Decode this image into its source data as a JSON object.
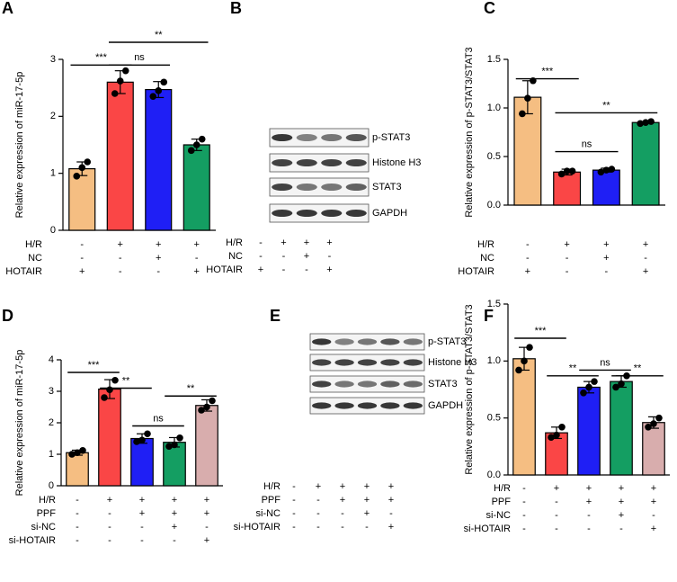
{
  "chart_data": [
    {
      "type": "bar",
      "panel": "A",
      "ylabel": "Relative expression of miR-17-5p",
      "categories": [
        null,
        null,
        null,
        null
      ],
      "values": [
        1.08,
        2.6,
        2.47,
        1.5
      ],
      "errors": [
        0.12,
        0.2,
        0.14,
        0.1
      ],
      "points": [
        [
          0.95,
          1.1,
          1.2
        ],
        [
          2.4,
          2.62,
          2.8
        ],
        [
          2.35,
          2.45,
          2.6
        ],
        [
          1.4,
          1.5,
          1.6
        ]
      ],
      "colors": [
        "#f5be82",
        "#fa4646",
        "#1f1ff5",
        "#149e62"
      ],
      "ylim": [
        0,
        3
      ],
      "yticks": [
        0,
        1,
        2,
        3
      ],
      "annotations": [
        {
          "text": "***",
          "from": 0,
          "to": 1,
          "y": 2.9
        },
        {
          "text": "ns",
          "from": 1,
          "to": 2,
          "y": 2.9
        },
        {
          "text": "**",
          "from": 1,
          "to": 3,
          "y": 3.3
        }
      ],
      "conditions": [
        {
          "label": "H/R",
          "marks": [
            "-",
            "+",
            "+",
            "+"
          ]
        },
        {
          "label": "NC",
          "marks": [
            "-",
            "-",
            "+",
            "-"
          ]
        },
        {
          "label": "HOTAIR",
          "marks": [
            "+",
            "-",
            "-",
            "+"
          ]
        }
      ]
    },
    {
      "type": "bar",
      "panel": "C",
      "ylabel": "Relative expression of p-STAT3/STAT3",
      "categories": [
        null,
        null,
        null,
        null
      ],
      "values": [
        1.11,
        0.34,
        0.36,
        0.85
      ],
      "errors": [
        0.17,
        0.03,
        0.02,
        0.01
      ],
      "points": [
        [
          0.94,
          1.1,
          1.28
        ],
        [
          0.32,
          0.35,
          0.35
        ],
        [
          0.34,
          0.36,
          0.37
        ],
        [
          0.84,
          0.85,
          0.86
        ]
      ],
      "colors": [
        "#f5be82",
        "#fa4646",
        "#1f1ff5",
        "#149e62"
      ],
      "ylim": [
        0,
        1.5
      ],
      "yticks": [
        {
          "value": 0,
          "label": "0.0"
        },
        0.5,
        {
          "value": 1,
          "label": "1.0"
        },
        1.5
      ],
      "annotations": [
        {
          "text": "***",
          "from": 0,
          "to": 1,
          "y": 1.3
        },
        {
          "text": "ns",
          "from": 1,
          "to": 2,
          "y": 0.55
        },
        {
          "text": "**",
          "from": 1,
          "to": 3,
          "y": 0.95
        }
      ],
      "conditions": [
        {
          "label": "H/R",
          "marks": [
            "-",
            "+",
            "+",
            "+"
          ]
        },
        {
          "label": "NC",
          "marks": [
            "-",
            "-",
            "+",
            "-"
          ]
        },
        {
          "label": "HOTAIR",
          "marks": [
            "+",
            "-",
            "-",
            "+"
          ]
        }
      ]
    },
    {
      "type": "bar",
      "panel": "D",
      "ylabel": "Relative expression of miR-17-5p",
      "categories": [
        null,
        null,
        null,
        null,
        null
      ],
      "values": [
        1.05,
        3.07,
        1.5,
        1.38,
        2.55
      ],
      "errors": [
        0.08,
        0.3,
        0.15,
        0.15,
        0.18
      ],
      "points": [
        [
          1.0,
          1.05,
          1.12
        ],
        [
          2.8,
          3.05,
          3.35
        ],
        [
          1.4,
          1.45,
          1.65
        ],
        [
          1.25,
          1.3,
          1.52
        ],
        [
          2.4,
          2.5,
          2.7
        ]
      ],
      "colors": [
        "#f5be82",
        "#fa4646",
        "#1f1ff5",
        "#149e62",
        "#d8adad"
      ],
      "ylim": [
        0,
        4
      ],
      "yticks": [
        0,
        1,
        2,
        3,
        4
      ],
      "annotations": [
        {
          "text": "***",
          "from": 0,
          "to": 1,
          "y": 3.6
        },
        {
          "text": "**",
          "from": 1,
          "to": 2,
          "y": 3.1
        },
        {
          "text": "ns",
          "from": 2,
          "to": 3,
          "y": 1.9
        },
        {
          "text": "**",
          "from": 3,
          "to": 4,
          "y": 2.85
        }
      ],
      "conditions": [
        {
          "label": "H/R",
          "marks": [
            "-",
            "+",
            "+",
            "+",
            "+"
          ]
        },
        {
          "label": "PPF",
          "marks": [
            "-",
            "-",
            "+",
            "+",
            "+"
          ]
        },
        {
          "label": "si-NC",
          "marks": [
            "-",
            "-",
            "-",
            "+",
            "-"
          ]
        },
        {
          "label": "si-HOTAIR",
          "marks": [
            "-",
            "-",
            "-",
            "-",
            "+"
          ]
        }
      ]
    },
    {
      "type": "bar",
      "panel": "F",
      "ylabel": "Relative expression of p-STAT3/STAT3",
      "categories": [
        null,
        null,
        null,
        null,
        null
      ],
      "values": [
        1.02,
        0.37,
        0.77,
        0.82,
        0.46
      ],
      "errors": [
        0.1,
        0.05,
        0.05,
        0.05,
        0.05
      ],
      "points": [
        [
          0.92,
          1.0,
          1.12
        ],
        [
          0.33,
          0.35,
          0.42
        ],
        [
          0.72,
          0.77,
          0.82
        ],
        [
          0.77,
          0.8,
          0.87
        ],
        [
          0.42,
          0.45,
          0.5
        ]
      ],
      "colors": [
        "#f5be82",
        "#fa4646",
        "#1f1ff5",
        "#149e62",
        "#d8adad"
      ],
      "ylim": [
        0,
        1.5
      ],
      "yticks": [
        {
          "value": 0,
          "label": "0.0"
        },
        0.5,
        {
          "value": 1,
          "label": "1.0"
        },
        1.5
      ],
      "annotations": [
        {
          "text": "***",
          "from": 0,
          "to": 1,
          "y": 1.2
        },
        {
          "text": "**",
          "from": 1,
          "to": 2,
          "y": 0.87
        },
        {
          "text": "ns",
          "from": 2,
          "to": 3,
          "y": 0.92
        },
        {
          "text": "**",
          "from": 3,
          "to": 4,
          "y": 0.87
        }
      ],
      "conditions": [
        {
          "label": "H/R",
          "marks": [
            "-",
            "+",
            "+",
            "+",
            "+"
          ]
        },
        {
          "label": "PPF",
          "marks": [
            "-",
            "-",
            "+",
            "+",
            "+"
          ]
        },
        {
          "label": "si-NC",
          "marks": [
            "-",
            "-",
            "-",
            "+",
            "-"
          ]
        },
        {
          "label": "si-HOTAIR",
          "marks": [
            "-",
            "-",
            "-",
            "-",
            "+"
          ]
        }
      ]
    }
  ],
  "blots": [
    {
      "panel": "B",
      "bands": [
        "p-STAT3",
        "Histone H3",
        "STAT3",
        "GAPDH"
      ],
      "conditions": [
        {
          "label": "H/R",
          "marks": [
            "-",
            "+",
            "+",
            "+"
          ]
        },
        {
          "label": "NC",
          "marks": [
            "-",
            "-",
            "+",
            "-"
          ]
        },
        {
          "label": "HOTAIR",
          "marks": [
            "+",
            "-",
            "-",
            "+"
          ]
        }
      ]
    },
    {
      "panel": "E",
      "bands": [
        "p-STAT3",
        "Histone H3",
        "STAT3",
        "GAPDH"
      ],
      "conditions": [
        {
          "label": "H/R",
          "marks": [
            "-",
            "+",
            "+",
            "+",
            "+"
          ]
        },
        {
          "label": "PPF",
          "marks": [
            "-",
            "-",
            "+",
            "+",
            "+"
          ]
        },
        {
          "label": "si-NC",
          "marks": [
            "-",
            "-",
            "-",
            "+",
            "-"
          ]
        },
        {
          "label": "si-HOTAIR",
          "marks": [
            "-",
            "-",
            "-",
            "-",
            "+"
          ]
        }
      ]
    }
  ]
}
